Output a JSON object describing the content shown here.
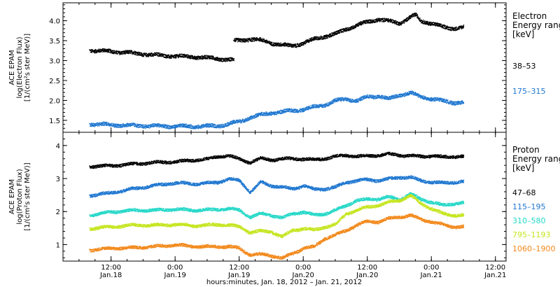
{
  "chart_data": [
    {
      "type": "scatter",
      "panel": "electron",
      "ylabel_lines": [
        "ACE EPAM",
        "log(Electron Flux)",
        "[1/(cm²s ster MeV)]"
      ],
      "legend_title_lines": [
        "Electron",
        "Energy range",
        "[keV]"
      ],
      "ylim": [
        1.2,
        4.45
      ],
      "yticks": [
        1.5,
        2.0,
        2.5,
        3.0,
        3.5,
        4.0
      ],
      "ytick_labels": [
        "1.5",
        "2.0",
        "2.5",
        "3.0",
        "3.5",
        "4.0"
      ],
      "x_unit": "hours since 2012-01-18 00:00",
      "series": [
        {
          "name": "38–53",
          "color": "#000000",
          "points": [
            [
              8,
              3.27
            ],
            [
              12,
              3.24
            ],
            [
              16,
              3.2
            ],
            [
              20,
              3.15
            ],
            [
              24,
              3.12
            ],
            [
              28,
              3.1
            ],
            [
              32,
              3.06
            ],
            [
              34,
              3.03
            ],
            [
              35,
              3.5
            ],
            [
              38,
              3.55
            ],
            [
              40,
              3.52
            ],
            [
              42,
              3.45
            ],
            [
              44,
              3.4
            ],
            [
              46,
              3.38
            ],
            [
              48,
              3.45
            ],
            [
              50,
              3.55
            ],
            [
              52,
              3.62
            ],
            [
              54,
              3.68
            ],
            [
              56,
              3.8
            ],
            [
              58,
              3.9
            ],
            [
              60,
              3.98
            ],
            [
              62,
              4.05
            ],
            [
              64,
              4.0
            ],
            [
              66,
              3.95
            ],
            [
              68,
              4.1
            ],
            [
              69,
              4.15
            ],
            [
              70,
              4.0
            ],
            [
              72,
              3.95
            ],
            [
              74,
              3.85
            ],
            [
              76,
              3.82
            ],
            [
              78,
              3.85
            ]
          ]
        },
        {
          "name": "175–315",
          "color": "#1f77d0",
          "points": [
            [
              8,
              1.42
            ],
            [
              12,
              1.4
            ],
            [
              16,
              1.38
            ],
            [
              20,
              1.37
            ],
            [
              24,
              1.36
            ],
            [
              28,
              1.36
            ],
            [
              32,
              1.37
            ],
            [
              34,
              1.42
            ],
            [
              36,
              1.48
            ],
            [
              38,
              1.58
            ],
            [
              40,
              1.65
            ],
            [
              42,
              1.7
            ],
            [
              44,
              1.72
            ],
            [
              46,
              1.76
            ],
            [
              48,
              1.78
            ],
            [
              50,
              1.85
            ],
            [
              52,
              1.9
            ],
            [
              54,
              2.0
            ],
            [
              56,
              2.05
            ],
            [
              58,
              2.0
            ],
            [
              60,
              2.1
            ],
            [
              62,
              2.12
            ],
            [
              64,
              2.05
            ],
            [
              66,
              2.15
            ],
            [
              68,
              2.2
            ],
            [
              70,
              2.1
            ],
            [
              72,
              2.05
            ],
            [
              74,
              2.0
            ],
            [
              76,
              1.96
            ],
            [
              78,
              1.95
            ]
          ]
        }
      ]
    },
    {
      "type": "scatter",
      "panel": "proton",
      "ylabel_lines": [
        "ACE EPAM",
        "log(Proton Flux)",
        "[1/(cm²s ster MeV)]"
      ],
      "legend_title_lines": [
        "Proton",
        "Energy range",
        "[keV]"
      ],
      "ylim": [
        0.5,
        4.4
      ],
      "yticks": [
        1,
        2,
        3,
        4
      ],
      "ytick_labels": [
        "1",
        "2",
        "3",
        "4"
      ],
      "x_unit": "hours since 2012-01-18 00:00",
      "series": [
        {
          "name": "47–68",
          "color": "#000000",
          "points": [
            [
              8,
              3.38
            ],
            [
              12,
              3.4
            ],
            [
              16,
              3.45
            ],
            [
              20,
              3.5
            ],
            [
              24,
              3.52
            ],
            [
              26,
              3.55
            ],
            [
              28,
              3.58
            ],
            [
              30,
              3.6
            ],
            [
              32,
              3.68
            ],
            [
              34,
              3.7
            ],
            [
              38,
              3.5
            ],
            [
              40,
              3.62
            ],
            [
              42,
              3.58
            ],
            [
              44,
              3.6
            ],
            [
              46,
              3.62
            ],
            [
              48,
              3.6
            ],
            [
              50,
              3.58
            ],
            [
              52,
              3.62
            ],
            [
              54,
              3.68
            ],
            [
              56,
              3.72
            ],
            [
              58,
              3.68
            ],
            [
              60,
              3.7
            ],
            [
              62,
              3.72
            ],
            [
              64,
              3.75
            ],
            [
              66,
              3.72
            ],
            [
              68,
              3.7
            ],
            [
              70,
              3.68
            ],
            [
              72,
              3.7
            ],
            [
              74,
              3.66
            ],
            [
              76,
              3.68
            ],
            [
              78,
              3.68
            ]
          ]
        },
        {
          "name": "115–195",
          "color": "#1f77d0",
          "points": [
            [
              8,
              2.5
            ],
            [
              12,
              2.58
            ],
            [
              16,
              2.7
            ],
            [
              20,
              2.8
            ],
            [
              24,
              2.88
            ],
            [
              28,
              2.85
            ],
            [
              32,
              2.9
            ],
            [
              34,
              3.0
            ],
            [
              36,
              2.95
            ],
            [
              38,
              2.6
            ],
            [
              40,
              2.9
            ],
            [
              42,
              2.8
            ],
            [
              44,
              2.75
            ],
            [
              46,
              2.7
            ],
            [
              48,
              2.8
            ],
            [
              50,
              2.68
            ],
            [
              52,
              2.7
            ],
            [
              54,
              2.75
            ],
            [
              56,
              2.9
            ],
            [
              58,
              2.95
            ],
            [
              60,
              2.98
            ],
            [
              62,
              2.95
            ],
            [
              64,
              3.0
            ],
            [
              66,
              3.05
            ],
            [
              68,
              3.05
            ],
            [
              70,
              2.95
            ],
            [
              72,
              2.9
            ],
            [
              74,
              2.88
            ],
            [
              76,
              2.9
            ],
            [
              78,
              2.92
            ]
          ]
        },
        {
          "name": "310–580",
          "color": "#25d8c8",
          "points": [
            [
              8,
              1.9
            ],
            [
              12,
              2.0
            ],
            [
              16,
              2.05
            ],
            [
              20,
              2.05
            ],
            [
              24,
              2.08
            ],
            [
              28,
              2.05
            ],
            [
              32,
              2.08
            ],
            [
              34,
              2.1
            ],
            [
              36,
              2.05
            ],
            [
              38,
              1.85
            ],
            [
              40,
              1.95
            ],
            [
              42,
              1.9
            ],
            [
              44,
              1.82
            ],
            [
              46,
              1.95
            ],
            [
              48,
              2.0
            ],
            [
              50,
              1.9
            ],
            [
              52,
              1.95
            ],
            [
              54,
              2.05
            ],
            [
              56,
              2.2
            ],
            [
              58,
              2.35
            ],
            [
              60,
              2.38
            ],
            [
              62,
              2.4
            ],
            [
              64,
              2.45
            ],
            [
              66,
              2.38
            ],
            [
              68,
              2.55
            ],
            [
              70,
              2.38
            ],
            [
              72,
              2.3
            ],
            [
              74,
              2.2
            ],
            [
              76,
              2.25
            ],
            [
              78,
              2.28
            ]
          ]
        },
        {
          "name": "795–1193",
          "color": "#c5e51e",
          "points": [
            [
              8,
              1.5
            ],
            [
              12,
              1.55
            ],
            [
              16,
              1.6
            ],
            [
              20,
              1.6
            ],
            [
              24,
              1.62
            ],
            [
              28,
              1.58
            ],
            [
              32,
              1.62
            ],
            [
              34,
              1.6
            ],
            [
              36,
              1.55
            ],
            [
              38,
              1.38
            ],
            [
              40,
              1.42
            ],
            [
              42,
              1.4
            ],
            [
              44,
              1.25
            ],
            [
              46,
              1.45
            ],
            [
              48,
              1.5
            ],
            [
              50,
              1.45
            ],
            [
              52,
              1.55
            ],
            [
              54,
              1.62
            ],
            [
              56,
              1.95
            ],
            [
              58,
              2.05
            ],
            [
              60,
              2.15
            ],
            [
              62,
              2.2
            ],
            [
              64,
              2.3
            ],
            [
              66,
              2.35
            ],
            [
              68,
              2.5
            ],
            [
              70,
              2.25
            ],
            [
              72,
              2.1
            ],
            [
              74,
              1.95
            ],
            [
              76,
              1.9
            ],
            [
              78,
              1.9
            ]
          ]
        },
        {
          "name": "1060–1900",
          "color": "#f2891b",
          "points": [
            [
              8,
              0.85
            ],
            [
              12,
              0.9
            ],
            [
              16,
              0.92
            ],
            [
              20,
              0.95
            ],
            [
              24,
              1.0
            ],
            [
              28,
              0.95
            ],
            [
              32,
              0.95
            ],
            [
              34,
              0.95
            ],
            [
              36,
              0.9
            ],
            [
              38,
              0.7
            ],
            [
              40,
              0.72
            ],
            [
              42,
              0.68
            ],
            [
              44,
              0.6
            ],
            [
              46,
              0.75
            ],
            [
              48,
              0.9
            ],
            [
              50,
              0.95
            ],
            [
              52,
              1.2
            ],
            [
              54,
              1.3
            ],
            [
              56,
              1.45
            ],
            [
              58,
              1.6
            ],
            [
              60,
              1.72
            ],
            [
              62,
              1.7
            ],
            [
              64,
              1.8
            ],
            [
              66,
              1.85
            ],
            [
              68,
              1.9
            ],
            [
              70,
              1.78
            ],
            [
              72,
              1.7
            ],
            [
              74,
              1.62
            ],
            [
              76,
              1.55
            ],
            [
              78,
              1.55
            ]
          ]
        }
      ]
    }
  ],
  "x_axis": {
    "xlim": [
      3,
      86
    ],
    "ticks": [
      12,
      24,
      36,
      48,
      60,
      72,
      84
    ],
    "labels": [
      [
        "12:00",
        "Jan.18"
      ],
      [
        "0:00",
        "Jan.19"
      ],
      [
        "12:00",
        "Jan.19"
      ],
      [
        "0:00",
        "Jan.20"
      ],
      [
        "12:00",
        "Jan.20"
      ],
      [
        "0:00",
        "Jan.21"
      ],
      [
        "12:00",
        "Jan.21"
      ]
    ],
    "title": "hours:minutes, Jan. 18, 2012 – Jan. 21, 2012"
  }
}
